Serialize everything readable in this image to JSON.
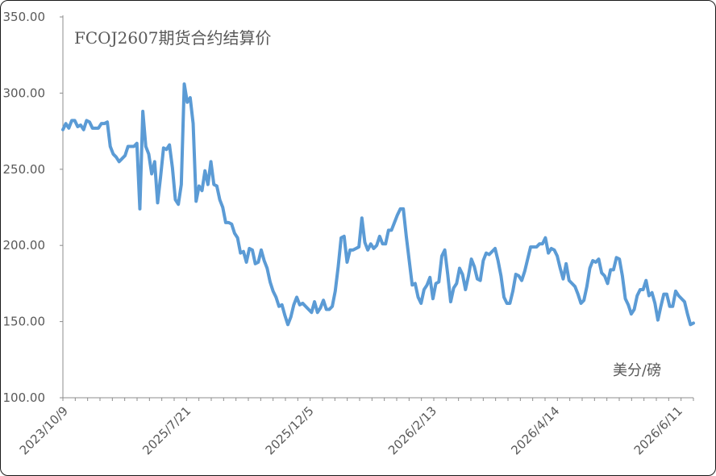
{
  "chart_data": {
    "type": "line",
    "title": "FCOJ2607期货合约结算价",
    "unit_label": "美分/磅",
    "xlabel": "",
    "ylabel": "",
    "ylim": [
      100,
      350
    ],
    "y_ticks": [
      "100.00",
      "150.00",
      "200.00",
      "250.00",
      "300.00",
      "350.00"
    ],
    "x_tick_labels": [
      "2023/10/9",
      "2025/7/21",
      "2025/12/5",
      "2026/2/13",
      "2026/4/14",
      "2026/6/11"
    ],
    "grid": false,
    "legend": "none",
    "line_color": "#5B9BD5",
    "series": [
      {
        "values": [
          276,
          280,
          277,
          282,
          282,
          278,
          279,
          276,
          282,
          281,
          277,
          277,
          277,
          280,
          280,
          281,
          265,
          260,
          258,
          255,
          257,
          259,
          265,
          265,
          265,
          267,
          224,
          288,
          265,
          260,
          247,
          255,
          228,
          245,
          264,
          263,
          266,
          251,
          230,
          227,
          240,
          306,
          294,
          297,
          280,
          229,
          239,
          236,
          249,
          240,
          255,
          240,
          239,
          230,
          225,
          215,
          215,
          214,
          208,
          205,
          195,
          196,
          189,
          198,
          197,
          188,
          189,
          197,
          190,
          185,
          176,
          170,
          166,
          160,
          161,
          154,
          148,
          153,
          161,
          166,
          161,
          162,
          160,
          158,
          156,
          163,
          156,
          159,
          164,
          158,
          158,
          160,
          170,
          186,
          205,
          206,
          189,
          197,
          197,
          198,
          199,
          218,
          202,
          197,
          201,
          198,
          200,
          206,
          201,
          201,
          210,
          210,
          215,
          220,
          224,
          224,
          206,
          190,
          174,
          175,
          166,
          162,
          171,
          174,
          179,
          165,
          175,
          176,
          193,
          197,
          181,
          163,
          172,
          175,
          185,
          181,
          171,
          180,
          191,
          186,
          178,
          177,
          190,
          195,
          194,
          196,
          198,
          190,
          180,
          166,
          162,
          162,
          170,
          181,
          180,
          177,
          183,
          191,
          199,
          199,
          199,
          201,
          201,
          205,
          195,
          198,
          197,
          193,
          185,
          178,
          188,
          177,
          175,
          173,
          168,
          162,
          164,
          173,
          185,
          190,
          189,
          191,
          182,
          180,
          175,
          184,
          184,
          192,
          191,
          180,
          165,
          161,
          155,
          158,
          167,
          171,
          171,
          177,
          167,
          169,
          162,
          151,
          160,
          168,
          168,
          160,
          160,
          170,
          167,
          165,
          163,
          155,
          148,
          149
        ]
      }
    ]
  }
}
